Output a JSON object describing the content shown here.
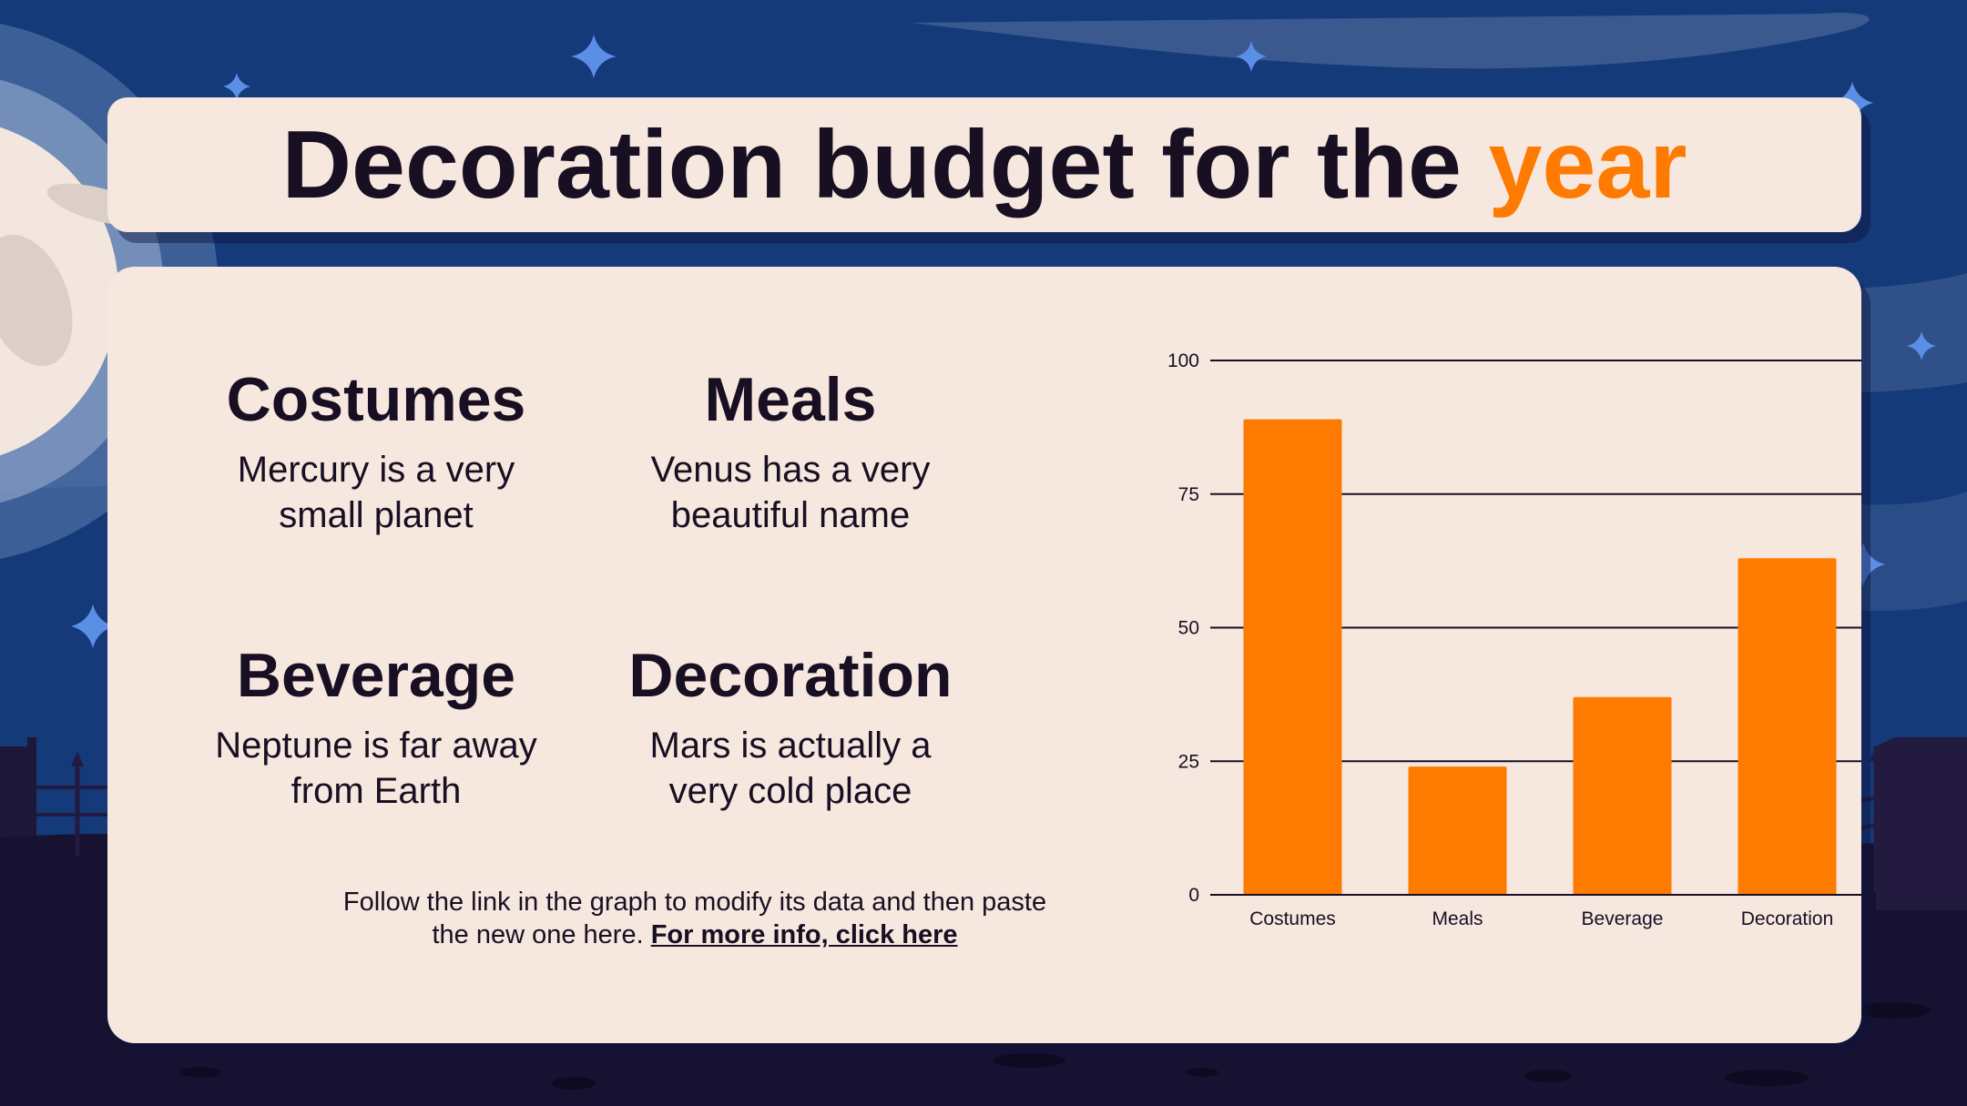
{
  "title": {
    "main": "Decoration budget for the ",
    "highlight": "year"
  },
  "items": [
    {
      "heading": "Costumes",
      "line1": "Mercury is a very",
      "line2": "small planet"
    },
    {
      "heading": "Meals",
      "line1": "Venus has a very",
      "line2": "beautiful name"
    },
    {
      "heading": "Beverage",
      "line1": "Neptune is far away",
      "line2": "from Earth"
    },
    {
      "heading": "Decoration",
      "line1": "Mars is actually a",
      "line2": "very cold place"
    }
  ],
  "footnote": {
    "line1": "Follow the link in the graph to modify its data and then paste",
    "line2_prefix": "the new one here. ",
    "link": "For more info, click here"
  },
  "colors": {
    "accent": "#ff7a00",
    "text": "#180f22",
    "card": "#f6e7df",
    "sky": "#143a7a",
    "star": "#5b8fe6"
  },
  "chart_data": {
    "type": "bar",
    "categories": [
      "Costumes",
      "Meals",
      "Beverage",
      "Decoration"
    ],
    "values": [
      89,
      24,
      37,
      63
    ],
    "ylim": [
      0,
      100
    ],
    "yticks": [
      0,
      25,
      50,
      75,
      100
    ],
    "grid": true,
    "bar_color": "#ff7a00"
  }
}
